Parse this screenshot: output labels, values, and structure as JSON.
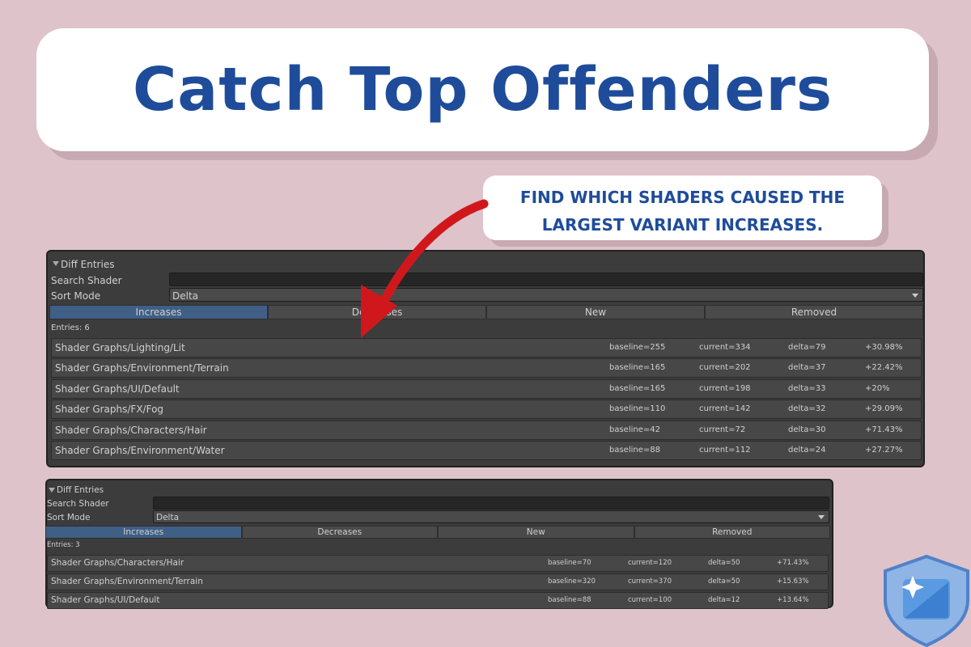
{
  "header": {
    "title": "Catch Top Offenders"
  },
  "callout": {
    "lines": [
      "FIND WHICH SHADERS CAUSED THE",
      "LARGEST VARIANT INCREASES."
    ]
  },
  "panels": [
    {
      "section": "Diff Entries",
      "search_label": "Search Shader",
      "sort_label": "Sort Mode",
      "sort_value": "Delta",
      "tabs": [
        "Increases",
        "Decreases",
        "New",
        "Removed"
      ],
      "active_tab": 0,
      "entries_label": "Entries: 6",
      "rows": [
        [
          "Shader Graphs/Lighting/Lit",
          "baseline=255",
          "current=334",
          "delta=79",
          "+30.98%"
        ],
        [
          "Shader Graphs/Environment/Terrain",
          "baseline=165",
          "current=202",
          "delta=37",
          "+22.42%"
        ],
        [
          "Shader Graphs/UI/Default",
          "baseline=165",
          "current=198",
          "delta=33",
          "+20%"
        ],
        [
          "Shader Graphs/FX/Fog",
          "baseline=110",
          "current=142",
          "delta=32",
          "+29.09%"
        ],
        [
          "Shader Graphs/Characters/Hair",
          "baseline=42",
          "current=72",
          "delta=30",
          "+71.43%"
        ],
        [
          "Shader Graphs/Environment/Water",
          "baseline=88",
          "current=112",
          "delta=24",
          "+27.27%"
        ]
      ]
    },
    {
      "section": "Diff Entries",
      "search_label": "Search Shader",
      "sort_label": "Sort Mode",
      "sort_value": "Delta",
      "tabs": [
        "Increases",
        "Decreases",
        "New",
        "Removed"
      ],
      "active_tab": 0,
      "entries_label": "Entries: 3",
      "rows": [
        [
          "Shader Graphs/Characters/Hair",
          "baseline=70",
          "current=120",
          "delta=50",
          "+71.43%"
        ],
        [
          "Shader Graphs/Environment/Terrain",
          "baseline=320",
          "current=370",
          "delta=50",
          "+15.63%"
        ],
        [
          "Shader Graphs/UI/Default",
          "baseline=88",
          "current=100",
          "delta=12",
          "+13.64%"
        ]
      ]
    }
  ]
}
